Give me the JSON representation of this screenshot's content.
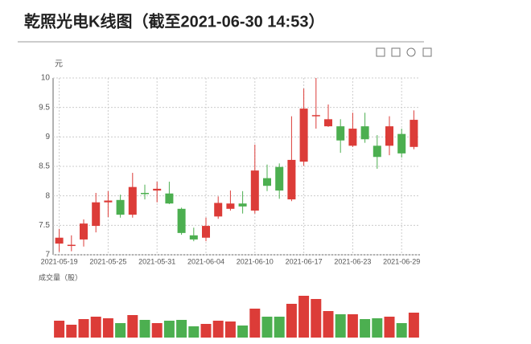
{
  "chart_data": {
    "type": "candlestick",
    "title": "乾照光电K线图（截至2021-06-30 14:53）",
    "y_label": "元",
    "categories": [
      "2021-05-19",
      null,
      null,
      null,
      "2021-05-25",
      null,
      null,
      null,
      "2021-05-31",
      null,
      null,
      null,
      "2021-06-04",
      null,
      null,
      null,
      "2021-06-10",
      null,
      null,
      null,
      "2021-06-17",
      null,
      null,
      null,
      "2021-06-23",
      null,
      null,
      null,
      "2021-06-29",
      null
    ],
    "open": [
      7.19,
      7.16,
      7.26,
      7.49,
      7.89,
      7.93,
      7.68,
      8.05,
      8.09,
      8.04,
      7.78,
      7.33,
      7.29,
      7.65,
      7.78,
      7.87,
      7.75,
      8.3,
      8.49,
      7.94,
      8.58,
      9.35,
      9.18,
      9.18,
      8.85,
      9.18,
      8.85,
      8.85,
      9.05,
      8.83
    ],
    "high": [
      7.44,
      7.33,
      7.6,
      8.05,
      8.08,
      8.02,
      8.39,
      8.19,
      8.24,
      8.24,
      7.8,
      7.46,
      7.63,
      7.99,
      8.09,
      8.08,
      8.87,
      8.53,
      8.55,
      9.35,
      9.82,
      10.0,
      9.55,
      9.3,
      9.41,
      9.41,
      9.03,
      9.35,
      9.14,
      9.45
    ],
    "low": [
      7.05,
      7.06,
      7.14,
      7.38,
      7.64,
      7.63,
      7.63,
      7.94,
      7.89,
      7.86,
      7.34,
      7.23,
      7.23,
      7.61,
      7.75,
      7.7,
      7.7,
      8.08,
      7.95,
      7.91,
      8.51,
      9.14,
      9.17,
      8.73,
      8.83,
      8.9,
      8.46,
      8.69,
      8.65,
      8.79
    ],
    "close": [
      7.29,
      7.17,
      7.53,
      7.89,
      7.92,
      7.68,
      8.15,
      8.03,
      8.12,
      7.87,
      7.37,
      7.26,
      7.49,
      7.88,
      7.87,
      7.82,
      8.43,
      8.17,
      8.09,
      8.61,
      9.48,
      9.37,
      9.3,
      8.94,
      9.14,
      8.96,
      8.66,
      9.18,
      8.72,
      9.29
    ],
    "volume_label": "成交量（股）",
    "volume": [
      21,
      16,
      23,
      26,
      24,
      18,
      28,
      22,
      18,
      21,
      22,
      14,
      17,
      21,
      20,
      15,
      36,
      26,
      26,
      42,
      52,
      48,
      33,
      29,
      29,
      23,
      24,
      26,
      18,
      31
    ],
    "up_color": "#dc3c38",
    "down_color": "#4caf50",
    "ylim": [
      7,
      10
    ],
    "yticks": [
      7,
      7.5,
      8,
      8.5,
      9,
      9.5,
      10
    ],
    "grid": true
  }
}
